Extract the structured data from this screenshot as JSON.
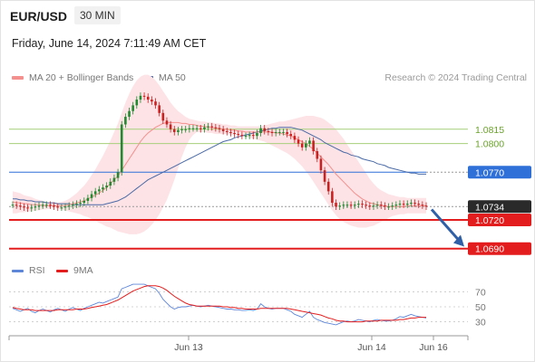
{
  "header": {
    "symbol": "EUR/USD",
    "timeframe": "30 MIN",
    "datetime": "Friday, June 14, 2024 7:11:49 AM CET"
  },
  "legend": [
    {
      "label": "MA 20 + Bollinger Bands",
      "color": "#f4908e"
    },
    {
      "label": "MA 50",
      "color": "#3b5ea8"
    }
  ],
  "credit": "Research © 2024 Trading Central",
  "colors": {
    "up": "#1f8a2e",
    "down": "#cf1e1e",
    "band": "#fde3e6",
    "ma20": "#f4908e",
    "ma50": "#4a6aa6",
    "resistance": "#a6cf7a",
    "pivot": "#2f6fd8",
    "support": "#e31d1d",
    "last": "#2a2a2a",
    "rsi": "#5d86d9",
    "rsi_ma": "#e31d1d"
  },
  "chart_data": [
    {
      "type": "candlestick",
      "series_name": "EUR/USD",
      "ylim": [
        1.0685,
        1.0865
      ],
      "x_ticks": [
        "Jun 13",
        "Jun 14",
        "Jun 16"
      ],
      "levels": [
        {
          "label": "1.0815",
          "value": 1.0815,
          "kind": "resistance"
        },
        {
          "label": "1.0800",
          "value": 1.08,
          "kind": "resistance"
        },
        {
          "label": "1.0770",
          "value": 1.077,
          "kind": "pivot"
        },
        {
          "label": "1.0734",
          "value": 1.0734,
          "kind": "last"
        },
        {
          "label": "1.0720",
          "value": 1.072,
          "kind": "support"
        },
        {
          "label": "1.0690",
          "value": 1.069,
          "kind": "support"
        }
      ],
      "close": [
        1.0736,
        1.0735,
        1.0734,
        1.0733,
        1.0732,
        1.0733,
        1.0734,
        1.0735,
        1.0736,
        1.0736,
        1.0735,
        1.0734,
        1.0733,
        1.0733,
        1.0734,
        1.0735,
        1.0736,
        1.0737,
        1.0738,
        1.074,
        1.0743,
        1.0747,
        1.075,
        1.0752,
        1.0754,
        1.0756,
        1.076,
        1.0764,
        1.077,
        1.082,
        1.0828,
        1.0834,
        1.084,
        1.0846,
        1.085,
        1.0849,
        1.0846,
        1.0844,
        1.084,
        1.0832,
        1.0824,
        1.082,
        1.0815,
        1.0812,
        1.0814,
        1.0815,
        1.0815,
        1.0816,
        1.0816,
        1.0816,
        1.0815,
        1.0817,
        1.0818,
        1.0817,
        1.0816,
        1.0815,
        1.0813,
        1.0812,
        1.0811,
        1.081,
        1.0809,
        1.0808,
        1.0808,
        1.0809,
        1.0808,
        1.0811,
        1.0816,
        1.0813,
        1.0812,
        1.0811,
        1.0812,
        1.0812,
        1.0812,
        1.081,
        1.0808,
        1.0804,
        1.08,
        1.0796,
        1.08,
        1.0803,
        1.0792,
        1.0784,
        1.0772,
        1.076,
        1.075,
        1.0738,
        1.0734,
        1.0735,
        1.0736,
        1.0736,
        1.0735,
        1.0736,
        1.0737,
        1.0736,
        1.0735,
        1.0734,
        1.0735,
        1.0736,
        1.0735,
        1.0734,
        1.0734,
        1.0735,
        1.0736,
        1.0737,
        1.0736,
        1.0737,
        1.0738,
        1.0737,
        1.0736,
        1.0735,
        1.0734
      ],
      "ma20": [
        1.0739,
        1.0738,
        1.0738,
        1.0737,
        1.0737,
        1.0736,
        1.0736,
        1.0736,
        1.0735,
        1.0735,
        1.0735,
        1.0735,
        1.0735,
        1.0735,
        1.0735,
        1.0736,
        1.0737,
        1.0738,
        1.0739,
        1.074,
        1.0742,
        1.0744,
        1.0746,
        1.0748,
        1.0751,
        1.0754,
        1.0758,
        1.0762,
        1.0766,
        1.0772,
        1.0778,
        1.0784,
        1.079,
        1.0796,
        1.0802,
        1.0807,
        1.0811,
        1.0814,
        1.0817,
        1.0819,
        1.0821,
        1.0822,
        1.0822,
        1.0822,
        1.0822,
        1.0821,
        1.0821,
        1.082,
        1.082,
        1.0819,
        1.0818,
        1.0818,
        1.0817,
        1.0817,
        1.0816,
        1.0816,
        1.0815,
        1.0815,
        1.0814,
        1.0814,
        1.0813,
        1.0813,
        1.0812,
        1.0812,
        1.0812,
        1.0812,
        1.0812,
        1.0812,
        1.0812,
        1.0812,
        1.0811,
        1.0811,
        1.081,
        1.0809,
        1.0808,
        1.0806,
        1.0804,
        1.0802,
        1.08,
        1.0797,
        1.0794,
        1.079,
        1.0786,
        1.0782,
        1.0778,
        1.0773,
        1.0768,
        1.0764,
        1.076,
        1.0756,
        1.0752,
        1.0748,
        1.0745,
        1.0742,
        1.074,
        1.0738,
        1.0737,
        1.0736,
        1.0735,
        1.0735,
        1.0734,
        1.0734,
        1.0734,
        1.0734,
        1.0734,
        1.0735,
        1.0735,
        1.0735,
        1.0735,
        1.0735,
        1.0735
      ],
      "ma50": [
        1.0742,
        1.0742,
        1.0741,
        1.0741,
        1.074,
        1.074,
        1.0739,
        1.0739,
        1.0739,
        1.0738,
        1.0738,
        1.0738,
        1.0737,
        1.0737,
        1.0737,
        1.0737,
        1.0736,
        1.0736,
        1.0736,
        1.0736,
        1.0736,
        1.0736,
        1.0736,
        1.0736,
        1.0736,
        1.0737,
        1.0738,
        1.0739,
        1.074,
        1.0742,
        1.0744,
        1.0747,
        1.075,
        1.0753,
        1.0756,
        1.0759,
        1.0762,
        1.0764,
        1.0766,
        1.0768,
        1.077,
        1.0772,
        1.0774,
        1.0776,
        1.0778,
        1.078,
        1.0782,
        1.0784,
        1.0786,
        1.0788,
        1.079,
        1.0792,
        1.0794,
        1.0796,
        1.0798,
        1.08,
        1.0802,
        1.0803,
        1.0804,
        1.0806,
        1.0807,
        1.0808,
        1.0809,
        1.081,
        1.0811,
        1.0812,
        1.0813,
        1.0814,
        1.0815,
        1.0816,
        1.0816,
        1.0817,
        1.0817,
        1.0817,
        1.0817,
        1.0816,
        1.0815,
        1.0814,
        1.0812,
        1.081,
        1.0808,
        1.0806,
        1.0804,
        1.0801,
        1.0799,
        1.0797,
        1.0795,
        1.0793,
        1.0791,
        1.079,
        1.0788,
        1.0787,
        1.0786,
        1.0784,
        1.0783,
        1.0782,
        1.0781,
        1.0779,
        1.0778,
        1.0777,
        1.0775,
        1.0774,
        1.0773,
        1.0772,
        1.0771,
        1.077,
        1.0769,
        1.0769,
        1.0768,
        1.0768,
        1.0768
      ],
      "bollinger_upper": [
        1.075,
        1.0749,
        1.0748,
        1.0746,
        1.0745,
        1.0744,
        1.0742,
        1.0741,
        1.074,
        1.0739,
        1.0738,
        1.0738,
        1.0738,
        1.0739,
        1.074,
        1.0742,
        1.0745,
        1.0748,
        1.0752,
        1.0756,
        1.0761,
        1.0767,
        1.0773,
        1.078,
        1.0787,
        1.0795,
        1.0803,
        1.0812,
        1.0821,
        1.0832,
        1.0843,
        1.0852,
        1.086,
        1.0866,
        1.087,
        1.0872,
        1.0872,
        1.087,
        1.0866,
        1.0861,
        1.0855,
        1.0849,
        1.0843,
        1.0838,
        1.0834,
        1.0831,
        1.0828,
        1.0826,
        1.0825,
        1.0824,
        1.0823,
        1.0823,
        1.0822,
        1.0822,
        1.0821,
        1.0821,
        1.082,
        1.082,
        1.0819,
        1.0819,
        1.0818,
        1.0818,
        1.0818,
        1.0818,
        1.0818,
        1.0818,
        1.0818,
        1.0819,
        1.082,
        1.0821,
        1.0822,
        1.0823,
        1.0823,
        1.0824,
        1.0825,
        1.0826,
        1.0827,
        1.0828,
        1.0829,
        1.0829,
        1.0829,
        1.0828,
        1.0827,
        1.0825,
        1.0822,
        1.0819,
        1.0815,
        1.081,
        1.0805,
        1.0799,
        1.0793,
        1.0787,
        1.0781,
        1.0775,
        1.0769,
        1.0763,
        1.0758,
        1.0754,
        1.0751,
        1.0749,
        1.0747,
        1.0746,
        1.0745,
        1.0744,
        1.0744,
        1.0743,
        1.0743,
        1.0743,
        1.0743,
        1.0743,
        1.0743
      ],
      "bollinger_lower": [
        1.0727,
        1.0727,
        1.0728,
        1.0728,
        1.0729,
        1.0729,
        1.073,
        1.073,
        1.0731,
        1.0731,
        1.0732,
        1.0732,
        1.0732,
        1.0731,
        1.073,
        1.0729,
        1.0728,
        1.0727,
        1.0726,
        1.0724,
        1.0723,
        1.0721,
        1.0719,
        1.0717,
        1.0715,
        1.0713,
        1.0712,
        1.071,
        1.0708,
        1.0707,
        1.0706,
        1.0705,
        1.0705,
        1.0705,
        1.0706,
        1.0708,
        1.0711,
        1.0715,
        1.072,
        1.0726,
        1.0733,
        1.0741,
        1.0751,
        1.0762,
        1.0774,
        1.0786,
        1.0796,
        1.0804,
        1.0809,
        1.0812,
        1.0812,
        1.0812,
        1.0811,
        1.0811,
        1.081,
        1.081,
        1.081,
        1.081,
        1.0809,
        1.0809,
        1.0808,
        1.0808,
        1.0807,
        1.0806,
        1.0805,
        1.0804,
        1.0803,
        1.0802,
        1.08,
        1.0798,
        1.0796,
        1.0794,
        1.0792,
        1.079,
        1.0787,
        1.0784,
        1.078,
        1.0776,
        1.0771,
        1.0766,
        1.076,
        1.0754,
        1.0748,
        1.0742,
        1.0736,
        1.073,
        1.0725,
        1.0721,
        1.0718,
        1.0716,
        1.0714,
        1.0713,
        1.0712,
        1.0712,
        1.0712,
        1.0713,
        1.0714,
        1.0716,
        1.0718,
        1.072,
        1.0722,
        1.0724,
        1.0725,
        1.0726,
        1.0726,
        1.0727,
        1.0727,
        1.0727,
        1.0727,
        1.0727,
        1.0727
      ]
    },
    {
      "type": "line",
      "legend": [
        "RSI",
        "9MA"
      ],
      "ylim": [
        15,
        85
      ],
      "y_ticks": [
        "70",
        "50",
        "30"
      ],
      "rsi": [
        48,
        46,
        44,
        46,
        48,
        44,
        42,
        45,
        47,
        45,
        43,
        46,
        48,
        46,
        44,
        47,
        49,
        47,
        45,
        48,
        50,
        52,
        54,
        56,
        55,
        57,
        59,
        61,
        63,
        74,
        76,
        78,
        80,
        80,
        80,
        80,
        78,
        76,
        74,
        68,
        60,
        55,
        50,
        47,
        49,
        50,
        50,
        51,
        52,
        51,
        50,
        51,
        52,
        51,
        50,
        49,
        48,
        47,
        47,
        46,
        46,
        45,
        45,
        46,
        45,
        47,
        54,
        50,
        48,
        47,
        48,
        48,
        48,
        46,
        44,
        40,
        38,
        36,
        40,
        44,
        36,
        33,
        31,
        29,
        28,
        27,
        26,
        28,
        30,
        31,
        30,
        31,
        33,
        32,
        31,
        30,
        32,
        33,
        32,
        31,
        31,
        32,
        34,
        37,
        36,
        38,
        40,
        38,
        37,
        36,
        35
      ],
      "rsi_ma": [
        49,
        48,
        47,
        46,
        46,
        46,
        45,
        45,
        45,
        45,
        45,
        45,
        46,
        46,
        46,
        46,
        46,
        47,
        47,
        47,
        48,
        49,
        50,
        51,
        52,
        53,
        55,
        57,
        59,
        62,
        65,
        68,
        71,
        73,
        75,
        77,
        78,
        78,
        78,
        77,
        75,
        72,
        68,
        64,
        61,
        58,
        55,
        53,
        52,
        51,
        51,
        51,
        51,
        51,
        51,
        51,
        50,
        50,
        49,
        49,
        48,
        48,
        47,
        47,
        47,
        47,
        48,
        48,
        48,
        48,
        48,
        48,
        48,
        48,
        47,
        46,
        45,
        44,
        43,
        42,
        41,
        40,
        39,
        37,
        35,
        34,
        32,
        31,
        31,
        30,
        30,
        30,
        30,
        30,
        31,
        31,
        31,
        31,
        32,
        32,
        32,
        32,
        32,
        33,
        33,
        34,
        35,
        35,
        36,
        36,
        36
      ]
    }
  ]
}
